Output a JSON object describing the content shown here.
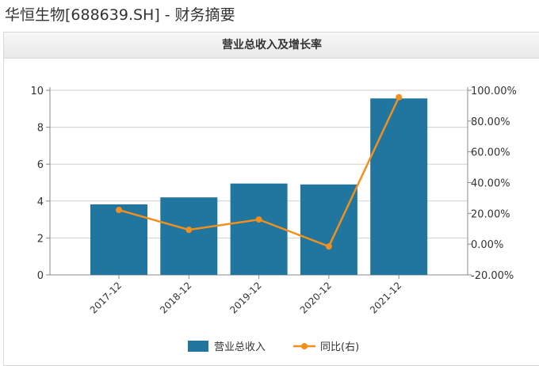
{
  "page_title": "华恒生物[688639.SH] - 财务摘要",
  "chart_data": {
    "type": "bar+line",
    "title": "营业总收入及增长率",
    "categories": [
      "2017-12",
      "2018-12",
      "2019-12",
      "2020-12",
      "2021-12"
    ],
    "series": [
      {
        "name": "营业总收入",
        "type": "bar",
        "axis": "left",
        "color": "#21769f",
        "values": [
          3.82,
          4.2,
          4.95,
          4.9,
          9.56
        ]
      },
      {
        "name": "同比(右)",
        "type": "line",
        "axis": "right",
        "color": "#f28f1d",
        "values": [
          22.2,
          9.3,
          16.0,
          -1.5,
          95.5
        ]
      }
    ],
    "left_axis": {
      "ylim": [
        0,
        10
      ],
      "ticks": [
        "0",
        "2",
        "4",
        "6",
        "8",
        "10"
      ]
    },
    "right_axis": {
      "ylim": [
        -20,
        100
      ],
      "ticks": [
        "-20.00%",
        "0.00%",
        "20.00%",
        "40.00%",
        "60.00%",
        "80.00%",
        "100.00%"
      ]
    },
    "grid": true,
    "legend": "bottom"
  }
}
